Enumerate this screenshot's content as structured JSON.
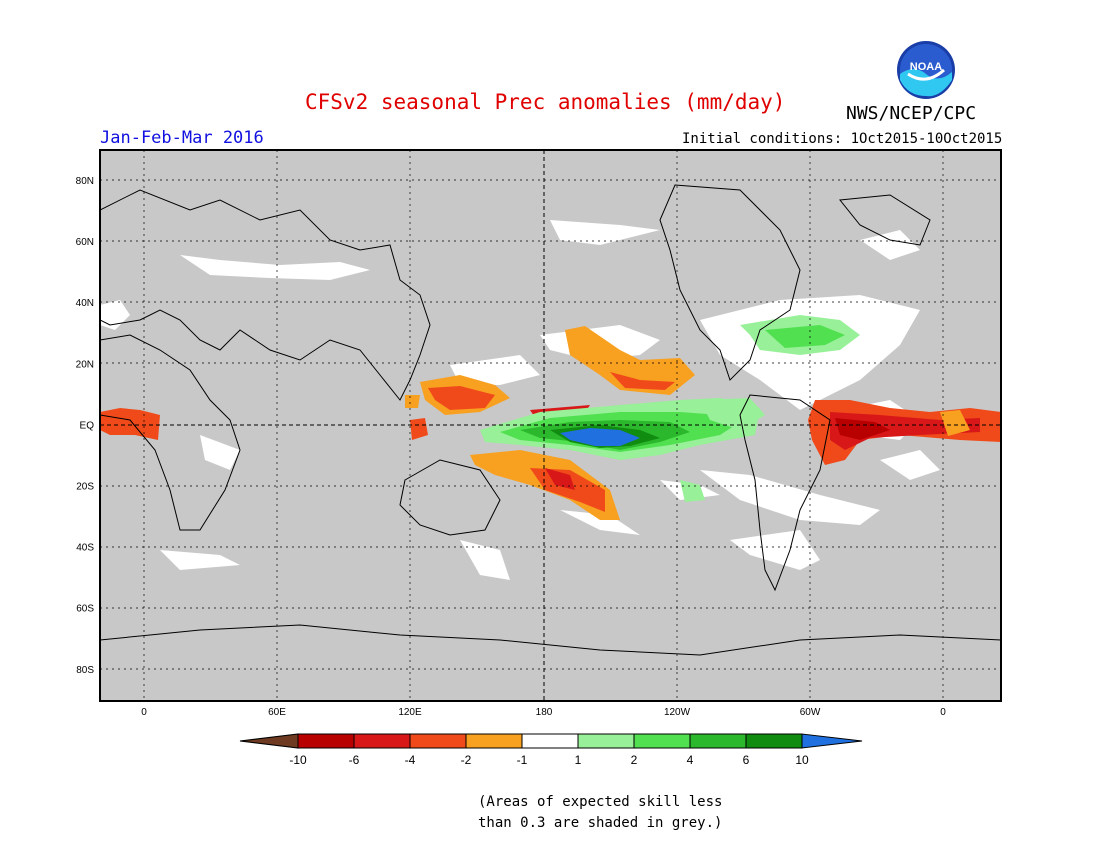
{
  "header": {
    "title": "CFSv2 seasonal Prec anomalies (mm/day)",
    "period": "Jan-Feb-Mar 2016",
    "initial_conditions": "Initial conditions: 1Oct2015-10Oct2015",
    "organization": "NWS/NCEP/CPC",
    "logo_text": "NOAA"
  },
  "map": {
    "lat_labels": [
      "80N",
      "60N",
      "40N",
      "20N",
      "EQ",
      "20S",
      "40S",
      "60S",
      "80S"
    ],
    "lon_labels": [
      "0",
      "60E",
      "120E",
      "180",
      "120W",
      "60W",
      "0"
    ],
    "background_color": "#c8c8c8"
  },
  "colorbar": {
    "labels": [
      "-10",
      "-6",
      "-4",
      "-2",
      "-1",
      "1",
      "2",
      "4",
      "6",
      "10"
    ],
    "colors": [
      "#6e3b22",
      "#b80000",
      "#d81818",
      "#f04a1a",
      "#f8a020",
      "#ffffff",
      "#98f098",
      "#50e050",
      "#2cb82c",
      "#108c10",
      "#2070e0"
    ]
  },
  "footnote": {
    "line1": "(Areas of expected skill less",
    "line2": "than 0.3 are shaded in grey.)"
  }
}
